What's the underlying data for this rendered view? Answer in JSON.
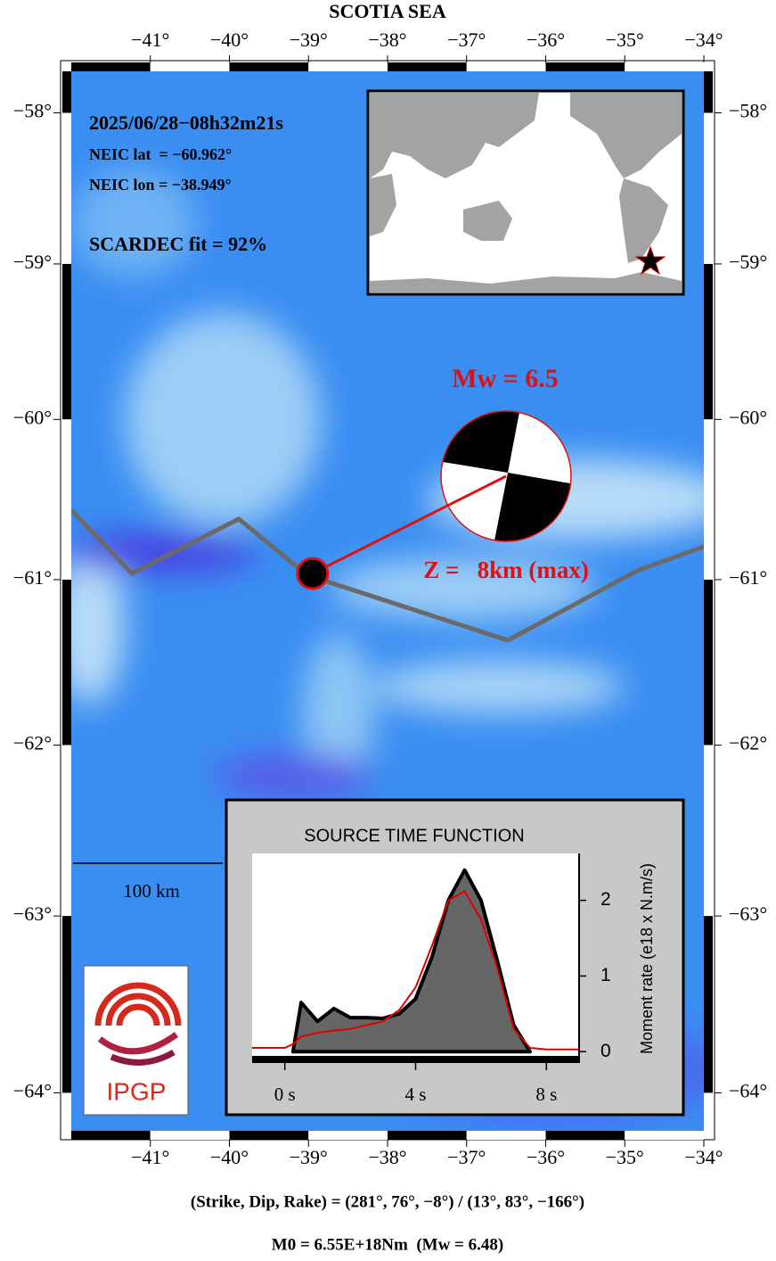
{
  "title": "SCOTIA SEA",
  "map": {
    "xlim": [
      -42,
      -34
    ],
    "ylim": [
      -57.72,
      -64.21
    ],
    "xticks": [
      {
        "value": -41,
        "label": "−41°"
      },
      {
        "value": -40,
        "label": "−40°"
      },
      {
        "value": -39,
        "label": "−39°"
      },
      {
        "value": -38,
        "label": "−38°"
      },
      {
        "value": -37,
        "label": "−37°"
      },
      {
        "value": -36,
        "label": "−36°"
      },
      {
        "value": -35,
        "label": "−35°"
      },
      {
        "value": -34,
        "label": "−34°"
      }
    ],
    "yticks": [
      {
        "value": -58,
        "label": "−58°"
      },
      {
        "value": -59,
        "label": "−59°"
      },
      {
        "value": -60,
        "label": "−60°"
      },
      {
        "value": -61,
        "label": "−61°"
      },
      {
        "value": -62,
        "label": "−62°"
      },
      {
        "value": -63,
        "label": "−63°"
      },
      {
        "value": -64,
        "label": "−64°"
      }
    ],
    "scale_bar": "100 km"
  },
  "event": {
    "datetime": "2025/06/28−08h32m21s",
    "lat_text": "NEIC lat  = −60.962°",
    "lon_text": "NEIC lon = −38.949°",
    "lat": -60.962,
    "lon": -38.949,
    "fit": "SCARDEC fit = 92%",
    "mw": "Mw = 6.5",
    "depth": "Z =   8km (max)"
  },
  "logo": "IPGP",
  "chart_data": {
    "type": "area",
    "title": "SOURCE TIME FUNCTION",
    "y_label": "Moment rate (e18 x N.m/s)",
    "x": [
      -1,
      -0.5,
      0,
      0.25,
      0.5,
      1,
      1.5,
      2,
      2.5,
      3,
      3.5,
      4,
      4.5,
      5,
      5.5,
      6,
      6.5,
      7,
      7.5,
      8,
      8.5,
      9
    ],
    "series": [
      {
        "color": "#666666",
        "values": [
          null,
          null,
          null,
          0,
          0.65,
          0.4,
          0.57,
          0.45,
          0.45,
          0.44,
          0.5,
          0.7,
          1.25,
          2.0,
          2.4,
          2.0,
          1.2,
          0.35,
          0,
          null,
          null,
          null
        ]
      },
      {
        "color": "#e00000",
        "values": [
          0.05,
          0.05,
          0.05,
          0.1,
          0.2,
          0.25,
          0.28,
          0.3,
          0.35,
          0.4,
          0.55,
          0.85,
          1.4,
          2.0,
          2.12,
          1.75,
          1.1,
          0.3,
          0.05,
          0.03,
          0.03,
          0.03
        ]
      }
    ],
    "xlim": [
      -1,
      9
    ],
    "ylim": [
      -0.15,
      2.62
    ],
    "xticks": [
      {
        "value": 0,
        "label": "0 s"
      },
      {
        "value": 4,
        "label": "4 s"
      },
      {
        "value": 8,
        "label": "8 s"
      }
    ],
    "yticks": [
      0,
      1,
      2
    ]
  },
  "footer": {
    "mechanism": "(Strike, Dip, Rake) = (281°, 76°, −8°) / (13°, 83°, −166°)",
    "moment": "M0 = 6.55E+18Nm  (Mw = 6.48)"
  }
}
